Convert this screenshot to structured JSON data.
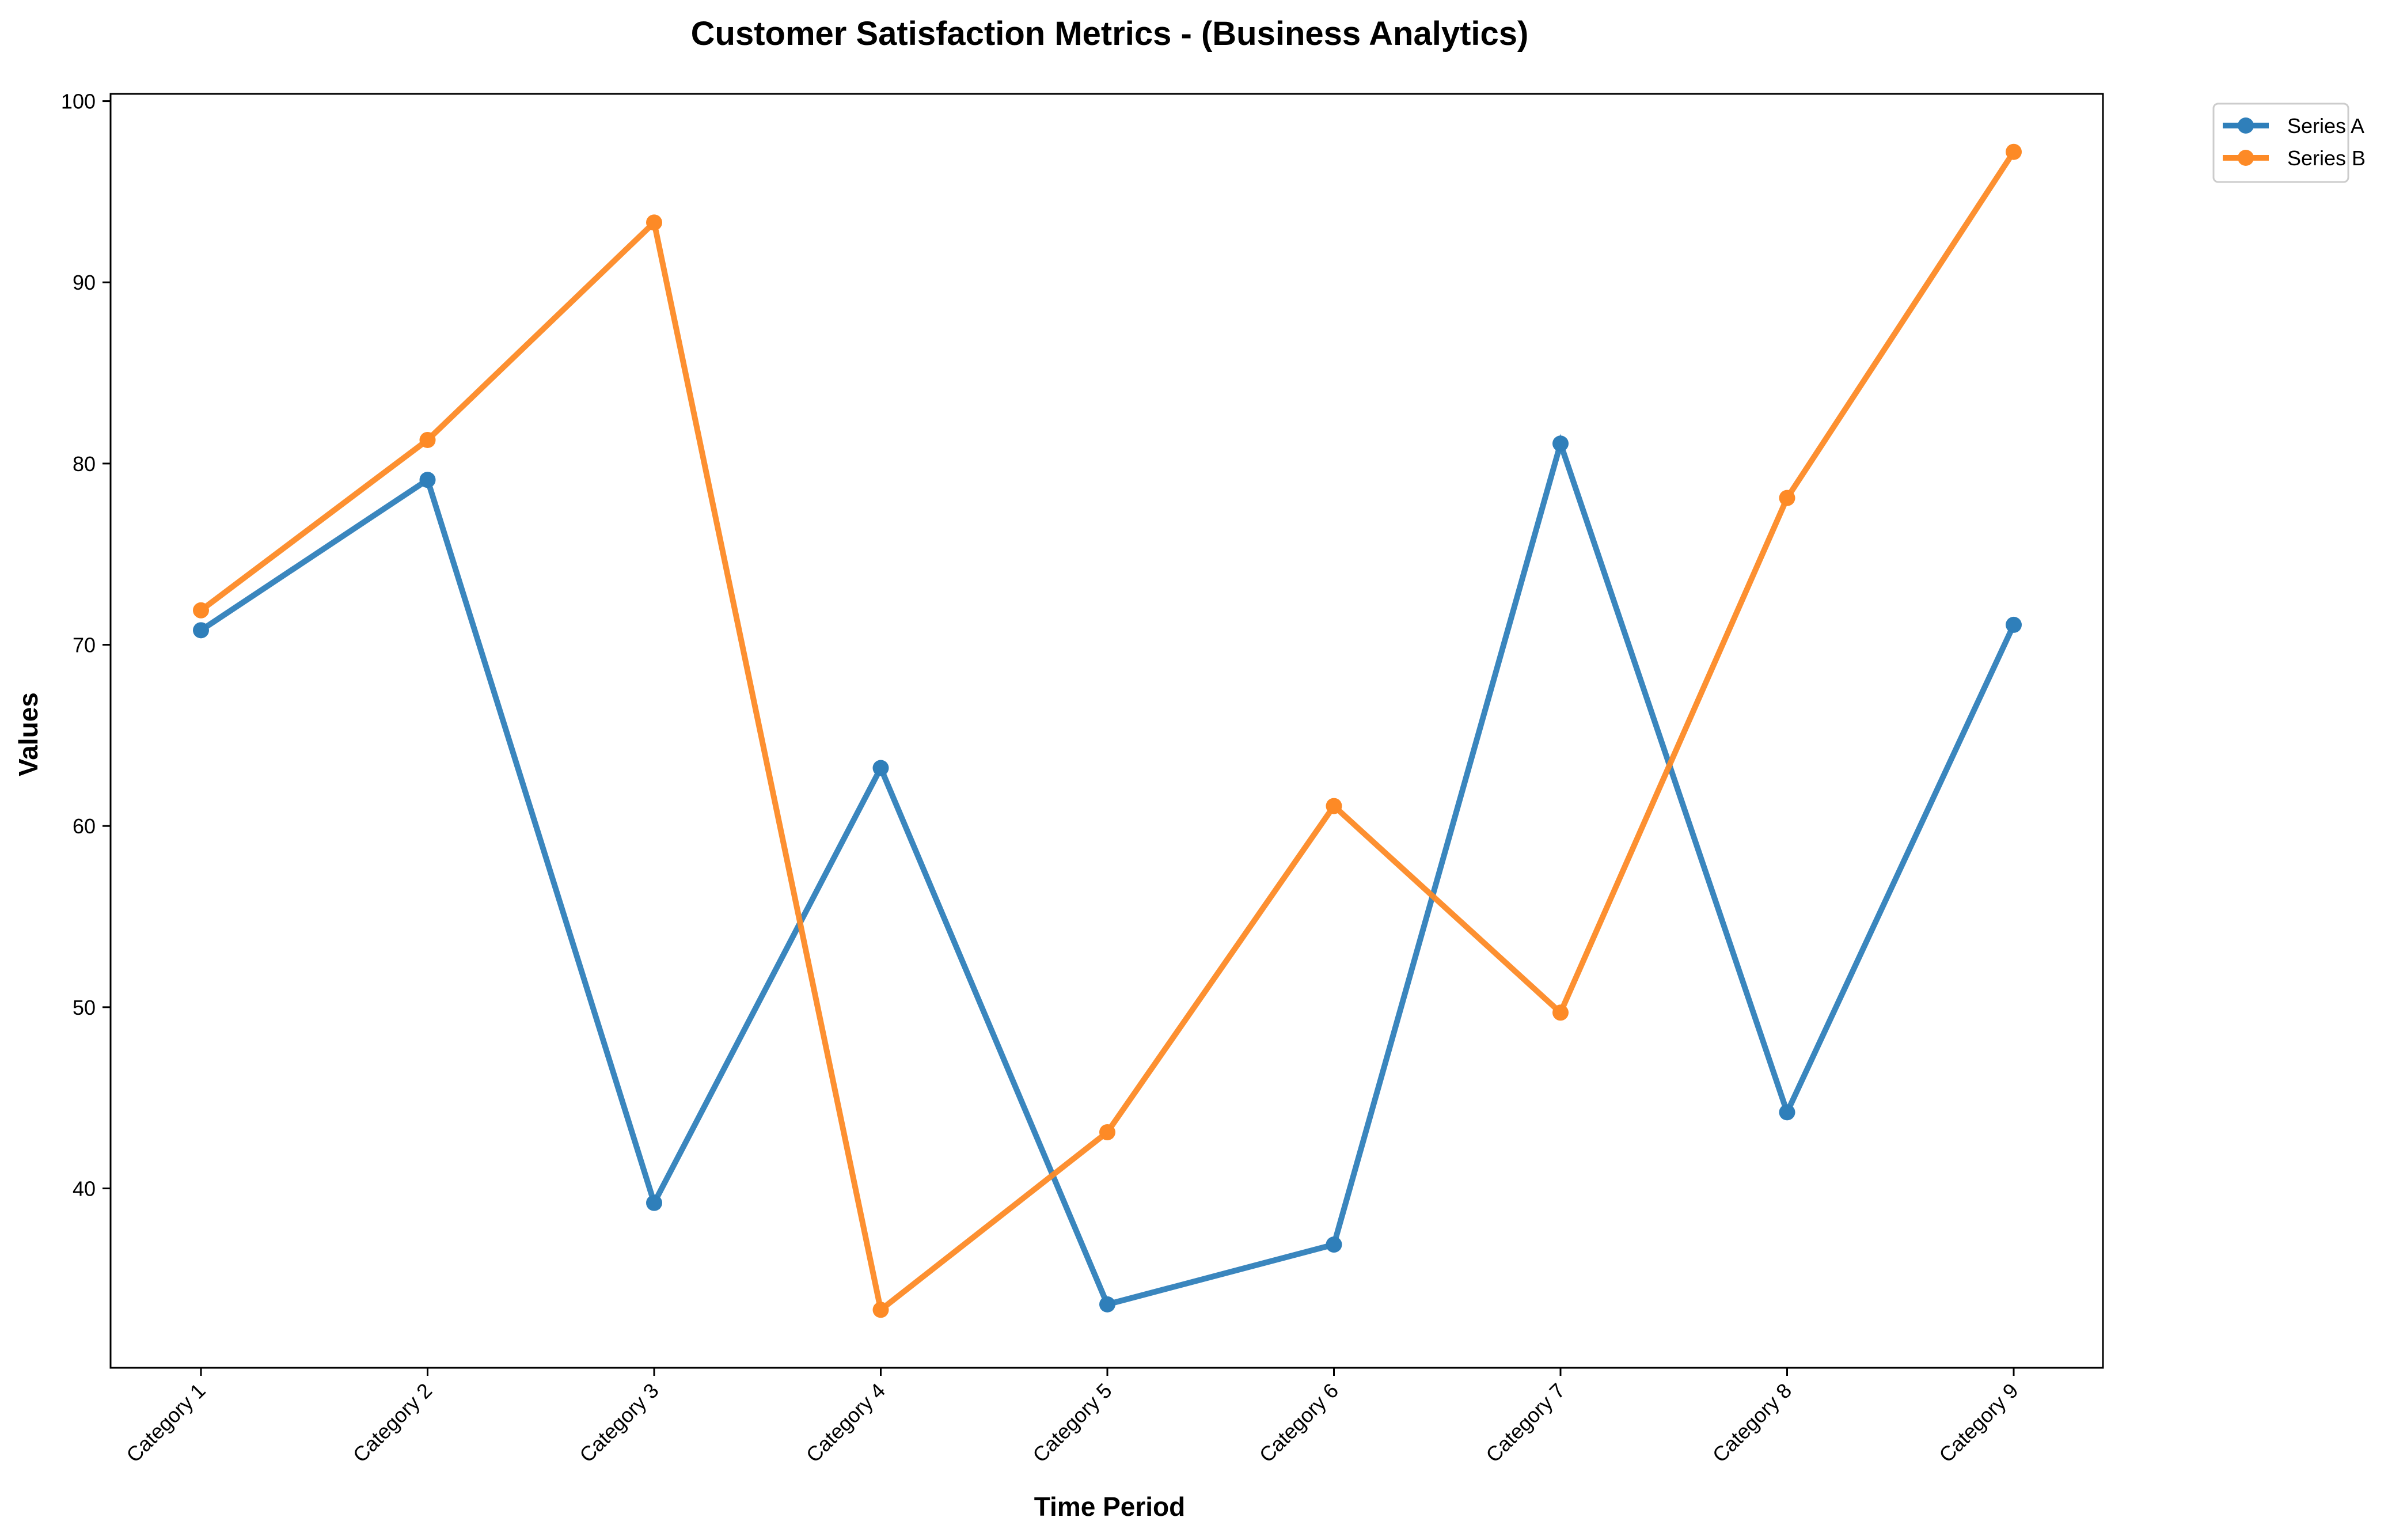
{
  "chart_data": {
    "type": "line",
    "title": "Customer Satisfaction Metrics - (Business Analytics)",
    "xlabel": "Time Period",
    "ylabel": "Values",
    "categories": [
      "Category 1",
      "Category 2",
      "Category 3",
      "Category 4",
      "Category 5",
      "Category 6",
      "Category 7",
      "Category 8",
      "Category 9"
    ],
    "series": [
      {
        "name": "Series A",
        "color": "#2f7fba",
        "values": [
          70.8,
          79.1,
          39.2,
          63.2,
          33.6,
          36.9,
          81.1,
          44.2,
          71.1
        ]
      },
      {
        "name": "Series B",
        "color": "#fd8a26",
        "values": [
          71.9,
          81.3,
          93.3,
          33.3,
          43.1,
          61.1,
          49.7,
          78.1,
          97.2
        ]
      }
    ],
    "ylim": [
      30.1,
      100.4
    ],
    "yticks": [
      40,
      50,
      60,
      70,
      80,
      90,
      100
    ],
    "grid": false,
    "legend_position": "outside-top-right"
  }
}
